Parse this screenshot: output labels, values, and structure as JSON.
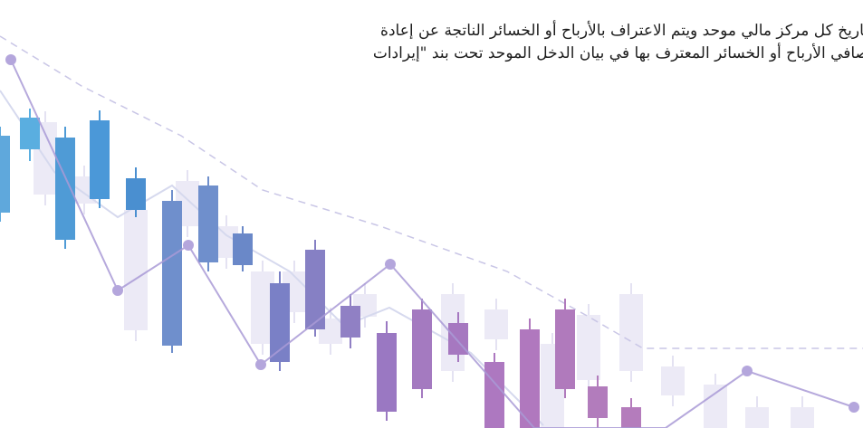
{
  "paragraph": {
    "lines": [
      "تاريخ كل مركز مالي موحد ويتم الاعتراف بالأرباح أو الخسائر الناتجة عن إعادة",
      "صافي الأرباح أو الخسائر المعترف بها في بيان الدخل الموحد تحت بند \"إيرادات"
    ]
  }
}
